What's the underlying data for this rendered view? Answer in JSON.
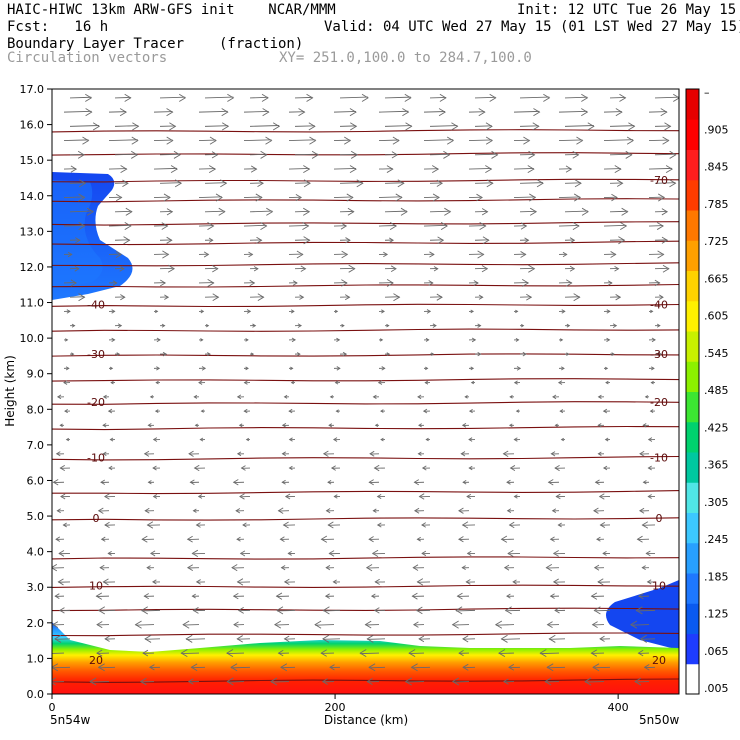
{
  "header": {
    "line1_left": "HAIC-HIWC 13km ARW-GFS init    NCAR/MMM",
    "line1_right": "Init: 12 UTC Tue 26 May 15",
    "line2_left": "Fcst:   16 h",
    "line2_right": "Valid: 04 UTC Wed 27 May 15 (01 LST Wed 27 May 15)",
    "line3_field": "Boundary Layer Tracer",
    "line3_units": "(fraction)",
    "line4_field": "Circulation vectors",
    "line4_xy": "XY= 251.0,100.0 to 284.7,100.0"
  },
  "chart_data": {
    "type": "heatmap",
    "xlabel": "Distance (km)",
    "ylabel": "Height (km)",
    "xlim": [
      0,
      443
    ],
    "ylim": [
      0,
      17
    ],
    "x_ticks": [
      "0",
      "200",
      "400"
    ],
    "x_tick_values": [
      0,
      200,
      400
    ],
    "x_end_labels": [
      "5n54w",
      "5n50w"
    ],
    "y_ticks": [
      "0.0",
      "1.0",
      "2.0",
      "3.0",
      "4.0",
      "5.0",
      "6.0",
      "7.0",
      "8.0",
      "9.0",
      "10.0",
      "11.0",
      "12.0",
      "13.0",
      "14.0",
      "15.0",
      "16.0",
      "17.0"
    ],
    "colorbar": {
      "labels": [
        ".005",
        ".065",
        ".125",
        ".185",
        ".245",
        ".305",
        ".365",
        ".425",
        ".485",
        ".545",
        ".605",
        ".665",
        ".725",
        ".785",
        ".845",
        ".905",
        "–"
      ],
      "colors": [
        "#ffffff",
        "#1e3cff",
        "#0a5af0",
        "#1e78ff",
        "#28a0ff",
        "#3cc8ff",
        "#50e6e6",
        "#00c8a0",
        "#00d26e",
        "#3ce632",
        "#8cf000",
        "#c8f000",
        "#fff000",
        "#ffd200",
        "#ffa000",
        "#ff7800",
        "#ff3c00",
        "#ff1e1e",
        "#ff0000",
        "#e60000"
      ]
    },
    "isotherms": [
      {
        "label": "-70",
        "height": 14.45
      },
      {
        "label": "-40",
        "height": 10.95
      },
      {
        "label": "-30",
        "height": 9.55
      },
      {
        "label": "-20",
        "height": 8.2
      },
      {
        "label": "-10",
        "height": 6.65
      },
      {
        "label": "0",
        "height": 4.95
      },
      {
        "label": "10",
        "height": 3.05
      },
      {
        "label": "20",
        "height": 0.95
      }
    ],
    "isotherm_levels": [
      0.4,
      1.7,
      2.4,
      3.05,
      3.85,
      4.95,
      5.7,
      6.65,
      7.5,
      8.2,
      8.85,
      9.55,
      10.25,
      10.95,
      11.5,
      12.1,
      12.7,
      13.25,
      13.9,
      14.45,
      15.2,
      15.85
    ]
  }
}
